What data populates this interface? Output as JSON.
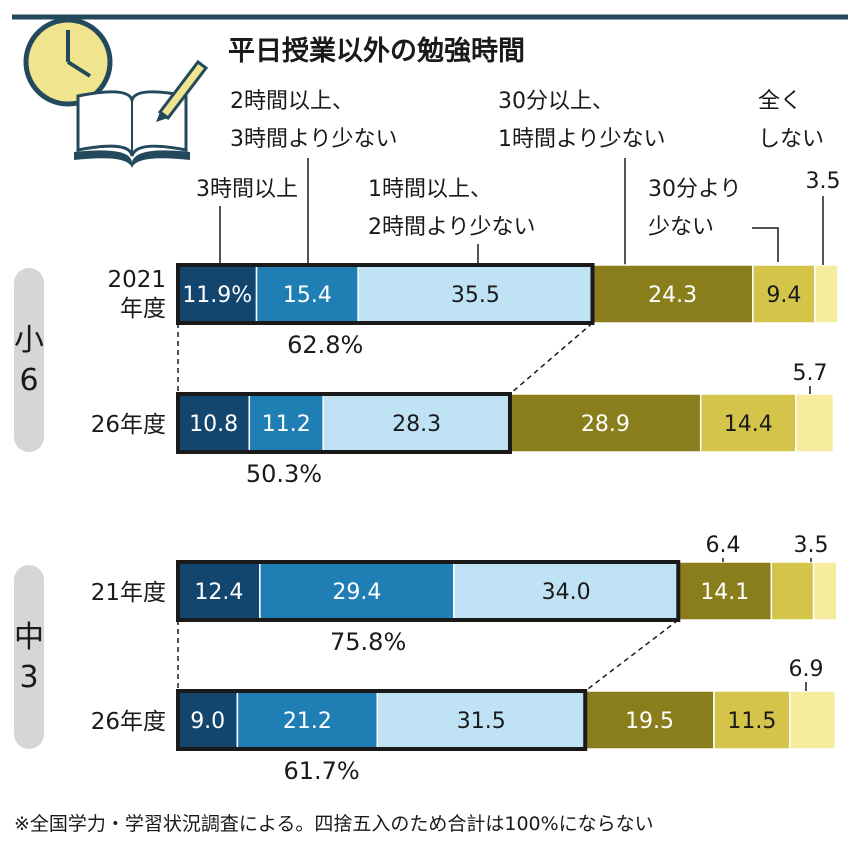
{
  "title": "平日授業以外の勉強時間",
  "note": "※全国学力・学習状況調査による。四捨五入のため合計は100%にならない",
  "colors": {
    "header_line": "#234a5c",
    "c1": "#13466e",
    "c2": "#1f7fb4",
    "c3": "#bfe3f5",
    "c4": "#8a7d1c",
    "c5": "#d4c54a",
    "c6": "#f5ec9e",
    "group_pill": "#d6d6d6"
  },
  "icon": "clock-and-open-book-with-pencil",
  "chart_data": {
    "type": "bar",
    "orientation": "horizontal",
    "stacked": true,
    "unit": "%",
    "categories": [
      "3時間以上",
      "2時間以上、3時間より少ない",
      "1時間以上、2時間より少ない",
      "30分以上、1時間より少ない",
      "30分より少ない",
      "全くしない"
    ],
    "category_labels": [
      [
        "3時間以上"
      ],
      [
        "2時間以上、",
        "3時間より少ない"
      ],
      [
        "1時間以上、",
        "2時間より少ない"
      ],
      [
        "30分以上、",
        "1時間より少ない"
      ],
      [
        "30分より",
        "少ない"
      ],
      [
        "全く",
        "しない"
      ]
    ],
    "groups": [
      {
        "name": "小6",
        "rows": [
          {
            "label": [
              "2021",
              "年度"
            ],
            "values": [
              11.9,
              15.4,
              35.5,
              24.3,
              9.4,
              3.5
            ],
            "labels": [
              "11.9%",
              "15.4",
              "35.5",
              "24.3",
              "9.4",
              "3.5"
            ],
            "subtotal": "62.8%"
          },
          {
            "label": [
              "26年度"
            ],
            "values": [
              10.8,
              11.2,
              28.3,
              28.9,
              14.4,
              5.7
            ],
            "labels": [
              "10.8",
              "11.2",
              "28.3",
              "28.9",
              "14.4",
              "5.7"
            ],
            "subtotal": "50.3%"
          }
        ]
      },
      {
        "name": "中3",
        "rows": [
          {
            "label": [
              "21年度"
            ],
            "values": [
              12.4,
              29.4,
              34.0,
              14.1,
              6.4,
              3.5
            ],
            "labels": [
              "12.4",
              "29.4",
              "34.0",
              "14.1",
              "6.4",
              "3.5"
            ],
            "subtotal": "75.8%"
          },
          {
            "label": [
              "26年度"
            ],
            "values": [
              9.0,
              21.2,
              31.5,
              19.5,
              11.5,
              6.9
            ],
            "labels": [
              "9.0",
              "21.2",
              "31.5",
              "19.5",
              "11.5",
              "6.9"
            ],
            "subtotal": "61.7%"
          }
        ]
      }
    ]
  }
}
